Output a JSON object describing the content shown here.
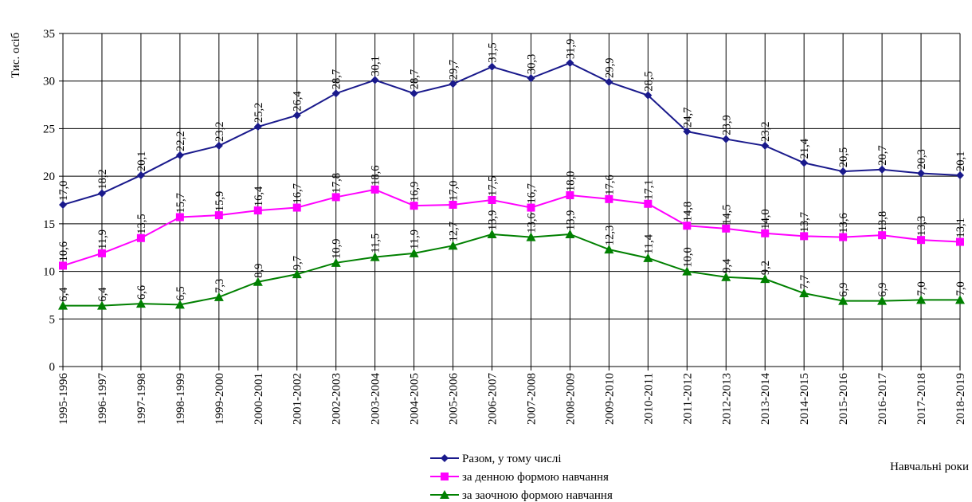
{
  "chart_data": {
    "type": "line",
    "title": "",
    "ylabel": "Тис. осіб",
    "xlabel": "Навчальні роки",
    "ylim": [
      0,
      35
    ],
    "yticks": [
      0,
      5,
      10,
      15,
      20,
      25,
      30,
      35
    ],
    "grid": true,
    "legend_position": "bottom",
    "categories": [
      "1995-1996",
      "1996-1997",
      "1997-1998",
      "1998-1999",
      "1999-2000",
      "2000-2001",
      "2001-2002",
      "2002-2003",
      "2003-2004",
      "2004-2005",
      "2005-2006",
      "2006-2007",
      "2007-2008",
      "2008-2009",
      "2009-2010",
      "2010-2011",
      "2011-2012",
      "2012-2013",
      "2013-2014",
      "2014-2015",
      "2015-2016",
      "2016-2017",
      "2017-2018",
      "2018-2019"
    ],
    "series": [
      {
        "name": "Разом, у тому числі",
        "color": "#1a1a8c",
        "marker": "diamond",
        "values": [
          17.0,
          18.2,
          20.1,
          22.2,
          23.2,
          25.2,
          26.4,
          28.7,
          30.1,
          28.7,
          29.7,
          31.5,
          30.3,
          31.9,
          29.9,
          28.5,
          24.7,
          23.9,
          23.2,
          21.4,
          20.5,
          20.7,
          20.3,
          20.1
        ],
        "labels": [
          "17,0",
          "18,2",
          "20,1",
          "22,2",
          "23,2",
          "25,2",
          "26,4",
          "28,7",
          "30,1",
          "28,7",
          "29,7",
          "31,5",
          "30,3",
          "31,9",
          "29,9",
          "28,5",
          "24,7",
          "23,9",
          "23,2",
          "21,4",
          "20,5",
          "20,7",
          "20,3",
          "20,1"
        ]
      },
      {
        "name": "за денною формою навчання",
        "color": "#ff00ff",
        "marker": "square",
        "values": [
          10.6,
          11.9,
          13.5,
          15.7,
          15.9,
          16.4,
          16.7,
          17.8,
          18.6,
          16.9,
          17.0,
          17.5,
          16.7,
          18.0,
          17.6,
          17.1,
          14.8,
          14.5,
          14.0,
          13.7,
          13.6,
          13.8,
          13.3,
          13.1
        ],
        "labels": [
          "10,6",
          "11,9",
          "13,5",
          "15,7",
          "15,9",
          "16,4",
          "16,7",
          "17,8",
          "18,6",
          "16,9",
          "17,0",
          "17,5",
          "16,7",
          "18,0",
          "17,6",
          "17,1",
          "14,8",
          "14,5",
          "14,0",
          "13,7",
          "13,6",
          "13,8",
          "13,3",
          "13,1"
        ]
      },
      {
        "name": "за заочною формою навчання",
        "color": "#008000",
        "marker": "triangle",
        "values": [
          6.4,
          6.4,
          6.6,
          6.5,
          7.3,
          8.9,
          9.7,
          10.9,
          11.5,
          11.9,
          12.7,
          13.9,
          13.6,
          13.9,
          12.3,
          11.4,
          10.0,
          9.4,
          9.2,
          7.7,
          6.9,
          6.9,
          7.0,
          7.0
        ],
        "labels": [
          "6,4",
          "6,4",
          "6,6",
          "6,5",
          "7,3",
          "8,9",
          "9,7",
          "10,9",
          "11,5",
          "11,9",
          "12,7",
          "13,9",
          "13,6",
          "13,9",
          "12,3",
          "11,4",
          "10,0",
          "9,4",
          "9,2",
          "7,7",
          "6,9",
          "6,9",
          "7,0",
          "7,0"
        ]
      }
    ]
  }
}
